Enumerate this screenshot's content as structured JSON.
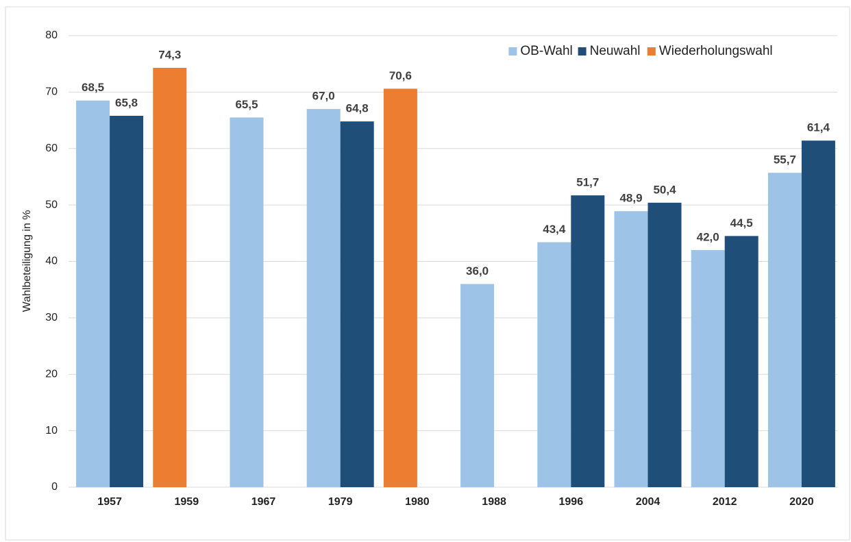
{
  "chart_data": {
    "type": "bar",
    "y_label": "Wahlbeteiligung in %",
    "categories": [
      "1957",
      "1959",
      "1967",
      "1979",
      "1980",
      "1988",
      "1996",
      "2004",
      "2012",
      "2020"
    ],
    "series": [
      {
        "name": "OB-Wahl",
        "color": "#9dc3e6",
        "values": [
          68.5,
          null,
          65.5,
          67.0,
          null,
          36.0,
          43.4,
          48.9,
          42.0,
          55.7
        ],
        "value_labels": [
          "68,5",
          null,
          "65,5",
          "67,0",
          null,
          "36,0",
          "43,4",
          "48,9",
          "42,0",
          "55,7"
        ]
      },
      {
        "name": "Neuwahl",
        "color": "#1f4e79",
        "values": [
          65.8,
          null,
          null,
          64.8,
          null,
          null,
          51.7,
          50.4,
          44.5,
          61.4
        ],
        "value_labels": [
          "65,8",
          null,
          null,
          "64,8",
          null,
          null,
          "51,7",
          "50,4",
          "44,5",
          "61,4"
        ]
      },
      {
        "name": "Wiederholungswahl",
        "color": "#ed7d31",
        "values": [
          null,
          74.3,
          null,
          null,
          70.6,
          null,
          null,
          null,
          null,
          null
        ],
        "value_labels": [
          null,
          "74,3",
          null,
          null,
          "70,6",
          null,
          null,
          null,
          null,
          null
        ]
      }
    ],
    "ylim": [
      0,
      80
    ],
    "yticks": [
      0,
      10,
      20,
      30,
      40,
      50,
      60,
      70,
      80
    ],
    "grid": true,
    "legend": "top-right"
  }
}
